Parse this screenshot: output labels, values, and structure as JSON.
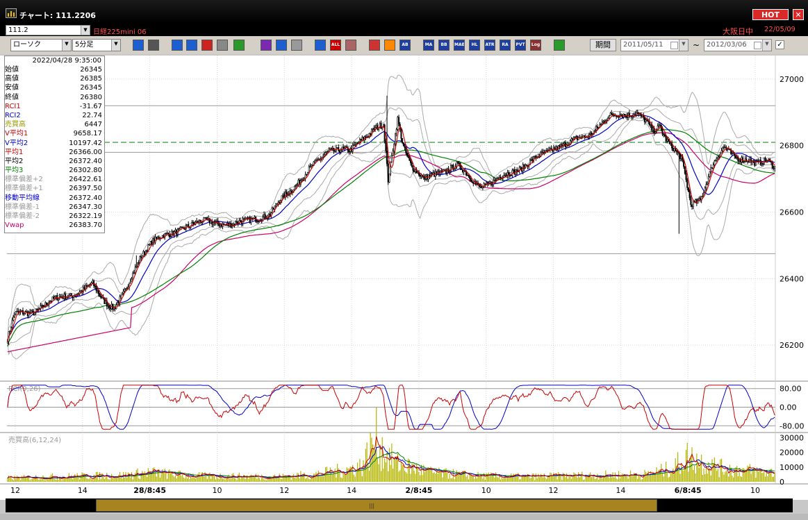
{
  "window": {
    "title": "チャート: 111.2206",
    "hot_label": "HOT",
    "close_label": "✕"
  },
  "symbol_bar": {
    "symbol_code": "111.2",
    "symbol_name": "日経225mini 06",
    "market_status": "大阪日中",
    "date": "22/05/09"
  },
  "toolbar": {
    "chart_type": "ローソク",
    "interval": "5分足",
    "period_label": "期間",
    "date_from": "2011/05/11",
    "date_to": "2012/03/06",
    "tilde": "~",
    "check": "✓",
    "icons": [
      "zoom-icon",
      "grid-icon",
      "arrow-down-icon",
      "search-icon",
      "high-low-icon",
      "info-icon",
      "draw-line-icon",
      "cursor-icon",
      "undo-icon",
      "candle-icon",
      "bar-icon",
      "all-icon",
      "gear-icon",
      "brush-icon",
      "color-icon",
      "abc-icon",
      "ma-icon",
      "bb-icon",
      "mae-icon",
      "hl-icon",
      "atr-icon",
      "rsi-icon",
      "pvt-icon",
      "log-icon",
      "export-icon"
    ],
    "icon_labels": [
      "",
      "",
      "",
      "",
      "",
      "",
      "",
      "",
      "",
      "",
      "",
      "ALL",
      "",
      "",
      "",
      "AB",
      "MA",
      "BB",
      "MAE",
      "HL",
      "ATR",
      "RA",
      "PVT",
      "Log",
      ""
    ]
  },
  "info_panel": {
    "timestamp": "2022/04/28  9:35:00",
    "rows": [
      {
        "label": "始値",
        "value": "26345",
        "color": "#000000"
      },
      {
        "label": "高値",
        "value": "26385",
        "color": "#000000"
      },
      {
        "label": "安値",
        "value": "26345",
        "color": "#000000"
      },
      {
        "label": "終値",
        "value": "26380",
        "color": "#000000"
      },
      {
        "label": "RCI1",
        "value": "-31.67",
        "color": "#cc0000"
      },
      {
        "label": "RCI2",
        "value": "22.74",
        "color": "#0000cc"
      },
      {
        "label": "売買高",
        "value": "6447",
        "color": "#999900"
      },
      {
        "label": "V平均1",
        "value": "9658.17",
        "color": "#cc0000"
      },
      {
        "label": "V平均2",
        "value": "10197.42",
        "color": "#0000cc"
      },
      {
        "label": "平均1",
        "value": "26366.00",
        "color": "#cc0000"
      },
      {
        "label": "平均2",
        "value": "26372.40",
        "color": "#000000"
      },
      {
        "label": "平均3",
        "value": "26302.80",
        "color": "#008000"
      },
      {
        "label": "標準偏差+2",
        "value": "26422.61",
        "color": "#999999"
      },
      {
        "label": "標準偏差+1",
        "value": "26397.50",
        "color": "#999999"
      },
      {
        "label": "移動平均線",
        "value": "26372.40",
        "color": "#0000cc"
      },
      {
        "label": "標準偏差-1",
        "value": "26347.30",
        "color": "#999999"
      },
      {
        "label": "標準偏差-2",
        "value": "26322.19",
        "color": "#999999"
      },
      {
        "label": "Vwap",
        "value": "26383.70",
        "color": "#cc0066"
      }
    ]
  },
  "colors": {
    "ma1": "#cc0000",
    "ma2": "#0000cc",
    "ma3": "#008000",
    "vwap": "#cc0066",
    "bands": "#aaaaaa",
    "volume": "#b5b500",
    "hline": "#008000"
  },
  "chart_data": {
    "type": "candlestick",
    "price_axis": {
      "ticks": [
        "27000",
        "26800",
        "26600",
        "26400",
        "26200"
      ],
      "ylim": [
        26100,
        27050
      ]
    },
    "rci_panel": {
      "label": "RCI(9,26)",
      "ticks": [
        "80.00",
        "0.00",
        "-80.00"
      ],
      "ylim": [
        -100,
        100
      ]
    },
    "volume_panel": {
      "label": "売買高(6,12,24)",
      "ticks": [
        "30000",
        "20000",
        "10000",
        "0"
      ],
      "ylim": [
        0,
        32000
      ]
    },
    "x_labels": [
      "12",
      "14",
      "28/8:45",
      "10",
      "12",
      "14",
      "2/8:45",
      "10",
      "12",
      "14",
      "6/8:45",
      "10"
    ],
    "x_label_bold": [
      false,
      false,
      true,
      false,
      false,
      false,
      true,
      false,
      false,
      false,
      true,
      false
    ],
    "dashed_level": 26810,
    "hlines": [
      26920,
      26780,
      26475
    ],
    "anchors": [
      [
        0,
        26220
      ],
      [
        6,
        26290
      ],
      [
        20,
        26300
      ],
      [
        40,
        26335
      ],
      [
        50,
        26350
      ],
      [
        64,
        26365
      ],
      [
        72,
        26380
      ],
      [
        80,
        26340
      ],
      [
        90,
        26315
      ],
      [
        100,
        26360
      ],
      [
        113,
        26470
      ],
      [
        122,
        26515
      ],
      [
        138,
        26530
      ],
      [
        150,
        26560
      ],
      [
        168,
        26570
      ],
      [
        180,
        26570
      ],
      [
        190,
        26560
      ],
      [
        200,
        26570
      ],
      [
        210,
        26585
      ],
      [
        222,
        26590
      ],
      [
        232,
        26640
      ],
      [
        248,
        26700
      ],
      [
        265,
        26760
      ],
      [
        272,
        26790
      ],
      [
        282,
        26790
      ],
      [
        290,
        26780
      ],
      [
        300,
        26820
      ],
      [
        310,
        26855
      ],
      [
        318,
        26860
      ],
      [
        322,
        26690
      ],
      [
        330,
        26880
      ],
      [
        335,
        26800
      ],
      [
        342,
        26740
      ],
      [
        352,
        26695
      ],
      [
        364,
        26720
      ],
      [
        380,
        26740
      ],
      [
        392,
        26700
      ],
      [
        400,
        26680
      ],
      [
        412,
        26690
      ],
      [
        425,
        26720
      ],
      [
        440,
        26745
      ],
      [
        452,
        26770
      ],
      [
        462,
        26795
      ],
      [
        474,
        26805
      ],
      [
        490,
        26830
      ],
      [
        500,
        26860
      ],
      [
        510,
        26885
      ],
      [
        520,
        26895
      ],
      [
        532,
        26900
      ],
      [
        540,
        26870
      ],
      [
        546,
        26840
      ],
      [
        552,
        26860
      ],
      [
        556,
        26830
      ],
      [
        570,
        26760
      ],
      [
        578,
        26620
      ],
      [
        586,
        26640
      ],
      [
        596,
        26740
      ],
      [
        606,
        26790
      ],
      [
        614,
        26770
      ],
      [
        626,
        26760
      ],
      [
        634,
        26740
      ],
      [
        643,
        26755
      ],
      [
        649,
        26740
      ]
    ],
    "volume_anchors": [
      [
        0,
        2500
      ],
      [
        40,
        3500
      ],
      [
        100,
        4500
      ],
      [
        120,
        6500
      ],
      [
        140,
        5000
      ],
      [
        160,
        4000
      ],
      [
        230,
        3500
      ],
      [
        260,
        5000
      ],
      [
        286,
        8000
      ],
      [
        300,
        11000
      ],
      [
        312,
        30000
      ],
      [
        318,
        20000
      ],
      [
        330,
        12000
      ],
      [
        360,
        6000
      ],
      [
        400,
        4000
      ],
      [
        440,
        3500
      ],
      [
        500,
        4500
      ],
      [
        540,
        5000
      ],
      [
        562,
        9000
      ],
      [
        575,
        17000
      ],
      [
        585,
        14000
      ],
      [
        605,
        9000
      ],
      [
        620,
        8000
      ],
      [
        649,
        6000
      ]
    ]
  },
  "scrollbar": {
    "grip": "|||"
  }
}
